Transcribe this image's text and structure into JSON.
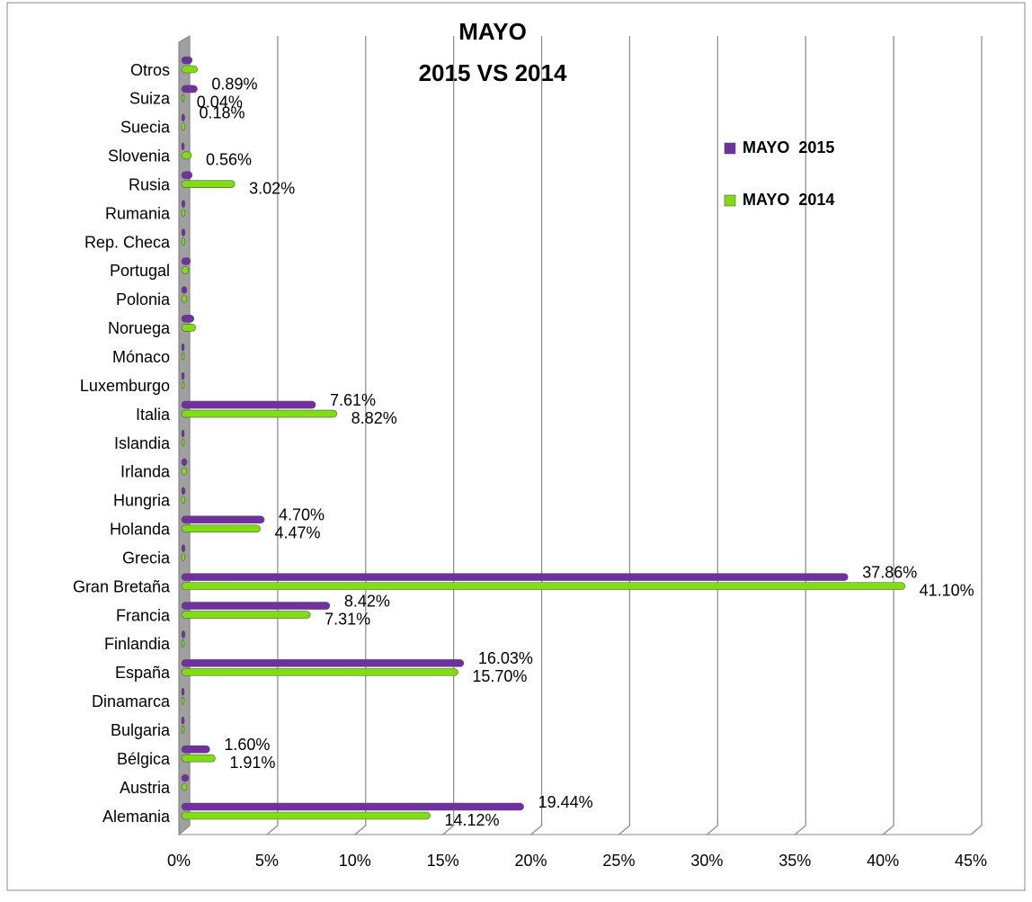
{
  "chart_data": {
    "type": "bar",
    "orientation": "horizontal",
    "title": "MAYO",
    "subtitle": "2015  VS  2014",
    "categories": [
      "Alemania",
      "Austria",
      "Bélgica",
      "Bulgaria",
      "Dinamarca",
      "España",
      "Finlandia",
      "Francia",
      "Gran Bretaña",
      "Grecia",
      "Holanda",
      "Hungria",
      "Irlanda",
      "Islandia",
      "Italia",
      "Luxemburgo",
      "Mónaco",
      "Noruega",
      "Polonia",
      "Portugal",
      "Rep. Checa",
      "Rumania",
      "Rusia",
      "Slovenia",
      "Suecia",
      "Suiza",
      "Otros"
    ],
    "series": [
      {
        "name": "MAYO  2015",
        "color": "#7030a0",
        "values": [
          19.44,
          0.4,
          1.6,
          0.1,
          0.1,
          16.03,
          0.2,
          8.42,
          37.86,
          0.2,
          4.7,
          0.2,
          0.3,
          0.1,
          7.61,
          0.1,
          0.1,
          0.7,
          0.3,
          0.5,
          0.2,
          0.2,
          0.6,
          0.1,
          0.18,
          0.89,
          0.6
        ],
        "value_labels": [
          "19.44%",
          null,
          "1.60%",
          null,
          null,
          "16.03%",
          null,
          "8.42%",
          "37.86%",
          null,
          "4.70%",
          null,
          null,
          null,
          "7.61%",
          null,
          null,
          null,
          null,
          null,
          null,
          null,
          null,
          null,
          "0.18%",
          "0.89%",
          null
        ]
      },
      {
        "name": "MAYO  2014",
        "color": "#7fdd10",
        "values": [
          14.12,
          0.3,
          1.91,
          0.1,
          0.1,
          15.7,
          0.1,
          7.31,
          41.1,
          0.2,
          4.47,
          0.2,
          0.3,
          0.1,
          8.82,
          0.1,
          0.1,
          0.8,
          0.3,
          0.4,
          0.2,
          0.2,
          3.02,
          0.56,
          0.2,
          0.04,
          0.9
        ],
        "value_labels": [
          "14.12%",
          null,
          "1.91%",
          null,
          null,
          "15.70%",
          null,
          "7.31%",
          "41.10%",
          null,
          "4.47%",
          null,
          null,
          null,
          "8.82%",
          null,
          null,
          null,
          null,
          null,
          null,
          null,
          "3.02%",
          "0.56%",
          null,
          "0.04%",
          null
        ]
      }
    ],
    "xlim": [
      0,
      45
    ],
    "xticks": [
      {
        "value": 0,
        "label": "0%"
      },
      {
        "value": 5,
        "label": "5%"
      },
      {
        "value": 10,
        "label": "10%"
      },
      {
        "value": 15,
        "label": "15%"
      },
      {
        "value": 20,
        "label": "20%"
      },
      {
        "value": 25,
        "label": "25%"
      },
      {
        "value": 30,
        "label": "30%"
      },
      {
        "value": 35,
        "label": "35%"
      },
      {
        "value": 40,
        "label": "40%"
      },
      {
        "value": 45,
        "label": "45%"
      }
    ],
    "grid": true,
    "legend": "right"
  }
}
